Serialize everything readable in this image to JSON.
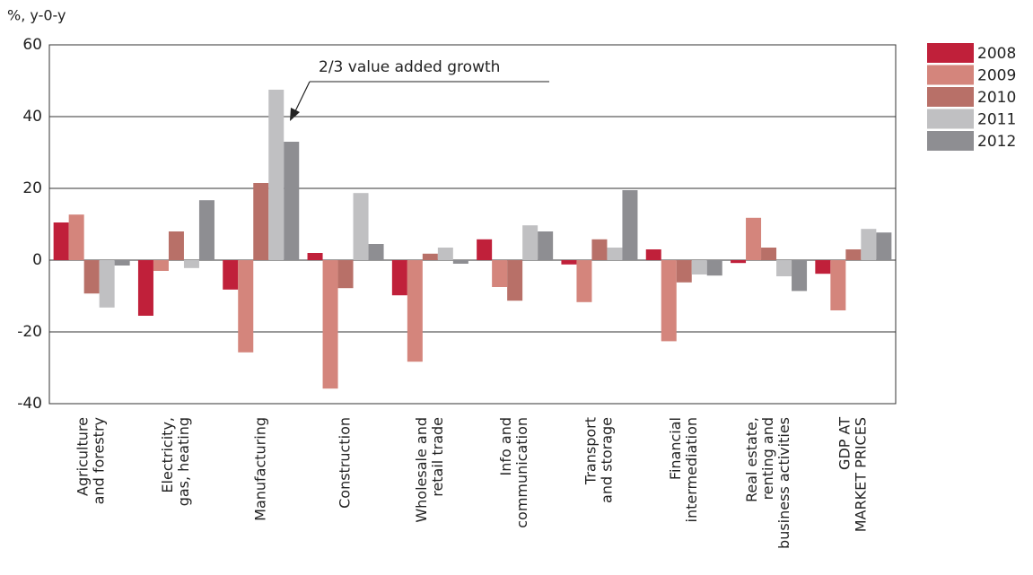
{
  "chart_data": {
    "type": "bar",
    "y_axis_label": "%, y-0-y",
    "annotation": "2/3 value added growth",
    "categories": [
      [
        "Agriculture",
        "and forestry"
      ],
      [
        "Electricity,",
        "gas, heating"
      ],
      [
        "Manufacturing"
      ],
      [
        "Construction"
      ],
      [
        "Wholesale and",
        "retail trade"
      ],
      [
        "Info and",
        "communication"
      ],
      [
        "Transport",
        "and storage"
      ],
      [
        "Financial",
        "intermediation"
      ],
      [
        "Real estate,",
        "renting and",
        "business activities"
      ],
      [
        "GDP AT",
        "MARKET PRICES"
      ]
    ],
    "series": [
      {
        "name": "2008",
        "color": "#c0203a",
        "values": [
          10.5,
          -15.5,
          -8.2,
          2,
          -9.8,
          5.8,
          -1.2,
          3,
          -0.8,
          -3.8
        ]
      },
      {
        "name": "2009",
        "color": "#d4857c",
        "values": [
          12.7,
          -3,
          -25.7,
          -35.8,
          -28.3,
          -7.5,
          -11.7,
          -22.6,
          11.8,
          -14
        ]
      },
      {
        "name": "2010",
        "color": "#b87068",
        "values": [
          -9.3,
          8,
          21.5,
          -7.8,
          1.8,
          -11.3,
          5.8,
          -6.2,
          3.5,
          3
        ]
      },
      {
        "name": "2011",
        "color": "#c0c0c2",
        "values": [
          -13.2,
          -2.2,
          47.5,
          18.7,
          3.5,
          9.7,
          3.5,
          -4,
          -4.5,
          8.7
        ]
      },
      {
        "name": "2012",
        "color": "#8e8e92",
        "values": [
          -1.5,
          16.7,
          33,
          4.5,
          -1,
          8,
          19.5,
          -4.3,
          -8.6,
          7.7
        ]
      }
    ],
    "ylim": [
      -40,
      60
    ],
    "yticks": [
      -40,
      -20,
      0,
      20,
      40,
      60
    ],
    "grid": true,
    "legend": "right"
  }
}
